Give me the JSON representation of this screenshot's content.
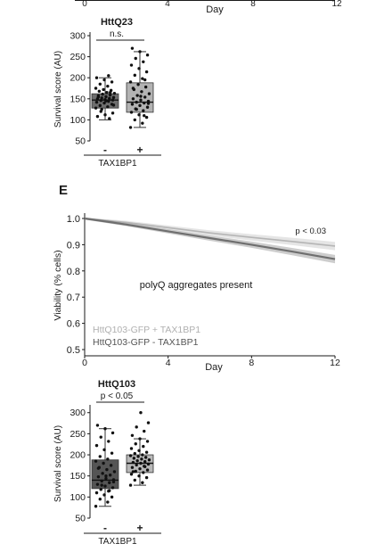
{
  "panel_top": {
    "x_ticks": [
      "0",
      "4",
      "8",
      "12"
    ],
    "xlabel": "Day"
  },
  "panel_e": {
    "letter": "E"
  },
  "chart_data": [
    {
      "type": "scatter",
      "subtype": "box-swarm",
      "title": "HttQ23",
      "significance": "n.s.",
      "ylabel": "Survival score (AU)",
      "ylim": [
        50,
        300
      ],
      "y_ticks": [
        "300",
        "250",
        "200",
        "150",
        "100",
        "50"
      ],
      "categories": [
        "-",
        "+"
      ],
      "xlabel": "TAX1BP1",
      "boxes": [
        {
          "name": "-",
          "q1": 128,
          "median": 147,
          "q3": 162,
          "whisker_low": 100,
          "whisker_high": 200,
          "color": "#6e6e6e"
        },
        {
          "name": "+",
          "q1": 118,
          "median": 142,
          "q3": 188,
          "whisker_low": 82,
          "whisker_high": 262,
          "color": "#b3b3b3"
        }
      ],
      "points": [
        [
          128,
          131,
          134,
          137,
          140,
          142,
          144,
          146,
          147,
          148,
          150,
          151,
          152,
          153,
          155,
          157,
          159,
          161,
          163,
          165,
          168,
          170,
          172,
          175,
          180,
          185,
          190,
          195,
          200,
          205,
          120,
          116,
          112,
          108,
          103,
          125,
          135,
          145,
          155,
          165
        ],
        [
          82,
          92,
          100,
          106,
          112,
          118,
          122,
          126,
          130,
          134,
          137,
          140,
          142,
          144,
          147,
          150,
          154,
          158,
          162,
          167,
          172,
          178,
          184,
          190,
          198,
          206,
          214,
          222,
          230,
          238,
          246,
          254,
          262,
          270,
          110,
          125,
          139,
          156,
          175,
          195
        ]
      ]
    },
    {
      "type": "line",
      "x": [
        0,
        12
      ],
      "xlim": [
        0,
        12
      ],
      "x_ticks": [
        "0",
        "4",
        "8",
        "12"
      ],
      "xlabel": "Day",
      "ylabel": "Viability (% cells)",
      "ylim": [
        0.5,
        1.0
      ],
      "y_ticks": [
        "1.0",
        "0.9",
        "0.8",
        "0.7",
        "0.6",
        "0.5"
      ],
      "annotation": "p < 0.03",
      "note": "polyQ aggregates present",
      "series": [
        {
          "name": "HttQ103-GFP + TAX1BP1",
          "x": [
            0,
            2,
            4,
            6,
            8,
            10,
            12
          ],
          "y": [
            1.0,
            0.985,
            0.965,
            0.945,
            0.928,
            0.912,
            0.895
          ],
          "color": "#b5b5b5"
        },
        {
          "name": "HttQ103-GFP - TAX1BP1",
          "x": [
            0,
            2,
            4,
            6,
            8,
            10,
            12
          ],
          "y": [
            1.0,
            0.977,
            0.951,
            0.925,
            0.9,
            0.873,
            0.845
          ],
          "color": "#6f6f6f"
        }
      ]
    },
    {
      "type": "scatter",
      "subtype": "box-swarm",
      "title": "HttQ103",
      "significance": "p < 0.05",
      "ylabel": "Survival score (AU)",
      "ylim": [
        50,
        310
      ],
      "y_ticks": [
        "300",
        "250",
        "200",
        "150",
        "100",
        "50"
      ],
      "categories": [
        "-",
        "+"
      ],
      "xlabel": "TAX1BP1",
      "boxes": [
        {
          "name": "-",
          "q1": 120,
          "median": 140,
          "q3": 188,
          "whisker_low": 78,
          "whisker_high": 262,
          "color": "#555555"
        },
        {
          "name": "+",
          "q1": 158,
          "median": 180,
          "q3": 200,
          "whisker_low": 128,
          "whisker_high": 238,
          "color": "#b8b8b8"
        }
      ],
      "points": [
        [
          78,
          88,
          95,
          100,
          105,
          110,
          114,
          118,
          122,
          126,
          130,
          134,
          138,
          141,
          144,
          148,
          152,
          156,
          160,
          165,
          170,
          175,
          180,
          185,
          190,
          196,
          204,
          212,
          222,
          232,
          242,
          252,
          262,
          270,
          115,
          128,
          136,
          150,
          168
        ],
        [
          128,
          134,
          140,
          146,
          150,
          154,
          158,
          161,
          164,
          167,
          170,
          173,
          176,
          178,
          180,
          182,
          184,
          186,
          188,
          190,
          192,
          194,
          196,
          198,
          200,
          203,
          206,
          210,
          215,
          220,
          226,
          232,
          238,
          246,
          256,
          266,
          276,
          300,
          160,
          172
        ]
      ]
    }
  ]
}
